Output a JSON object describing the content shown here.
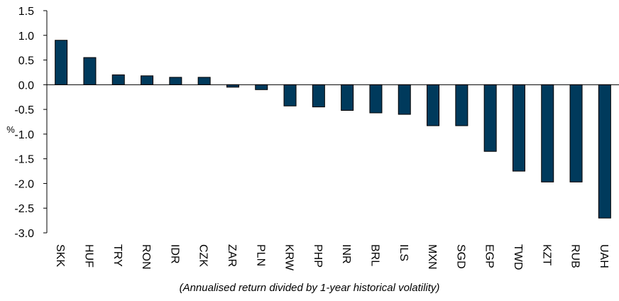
{
  "chart_data": {
    "type": "bar",
    "y_label": "%",
    "x_label": "(Annualised return divided by 1-year historical volatility)",
    "categories": [
      "SKK",
      "HUF",
      "TRY",
      "RON",
      "IDR",
      "CZK",
      "ZAR",
      "PLN",
      "KRW",
      "PHP",
      "INR",
      "BRL",
      "ILS",
      "MXN",
      "SGD",
      "EGP",
      "TWD",
      "KZT",
      "RUB",
      "UAH"
    ],
    "values": [
      0.9,
      0.55,
      0.2,
      0.18,
      0.15,
      0.15,
      -0.05,
      -0.1,
      -0.43,
      -0.45,
      -0.52,
      -0.57,
      -0.6,
      -0.83,
      -0.83,
      -1.35,
      -1.75,
      -1.97,
      -1.97,
      -2.7
    ],
    "color": "#003a5c",
    "ylim": [
      -3.0,
      1.5
    ],
    "yticks": [
      1.5,
      {
        "value": 1,
        "label": "1.0"
      },
      0.5,
      {
        "value": 0,
        "label": "0.0"
      },
      -0.5,
      {
        "value": -1,
        "label": "-1.0"
      },
      -1.5,
      {
        "value": -2,
        "label": "-2.0"
      },
      -2.5,
      {
        "value": -3,
        "label": "-3.0"
      }
    ],
    "grid": false
  }
}
